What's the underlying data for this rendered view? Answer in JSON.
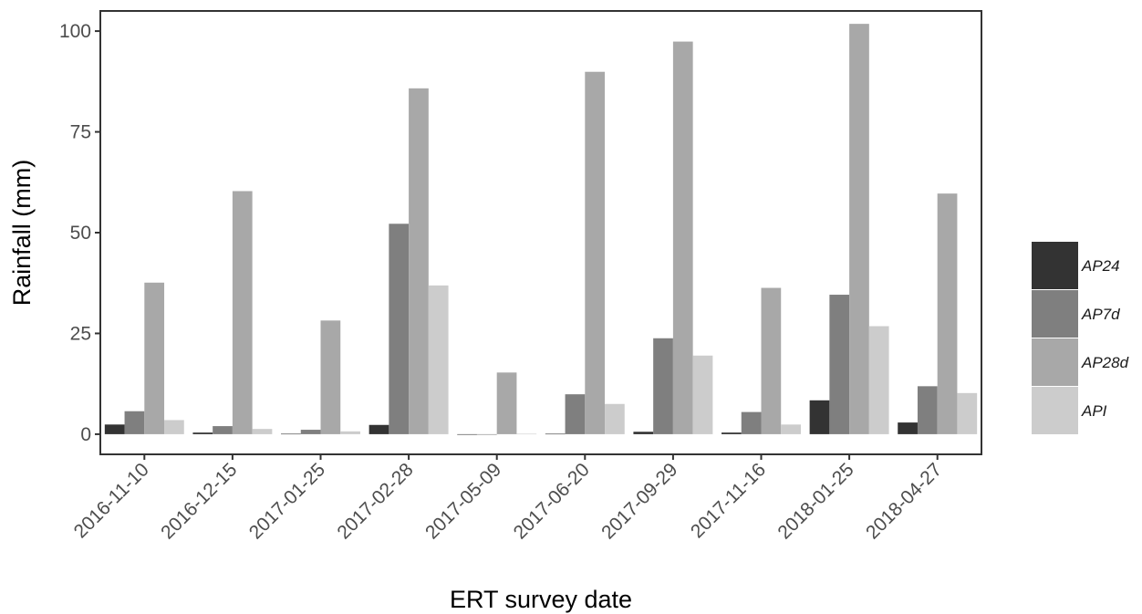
{
  "chart_data": {
    "type": "bar",
    "xlabel": "ERT survey date",
    "ylabel": "Rainfall (mm)",
    "ylim": [
      -5,
      105
    ],
    "yticks": [
      0,
      25,
      50,
      75,
      100
    ],
    "grid": false,
    "legend_position": "right",
    "categories": [
      "2016-11-10",
      "2016-12-15",
      "2017-01-25",
      "2017-02-28",
      "2017-05-09",
      "2017-06-20",
      "2017-09-29",
      "2017-11-16",
      "2018-01-25",
      "2018-04-27"
    ],
    "series": [
      {
        "name": "AP24",
        "color": "#333333",
        "values": [
          2.4,
          0.4,
          0.1,
          2.3,
          0.0,
          0.1,
          0.6,
          0.4,
          8.4,
          2.9
        ]
      },
      {
        "name": "AP7d",
        "color": "#7f7f7f",
        "values": [
          5.7,
          2.0,
          1.1,
          52.2,
          0.0,
          9.9,
          23.8,
          5.5,
          34.6,
          11.9
        ]
      },
      {
        "name": "AP28d",
        "color": "#a8a8a8",
        "values": [
          37.6,
          60.3,
          28.2,
          85.8,
          15.3,
          89.9,
          97.4,
          36.3,
          101.8,
          59.7
        ]
      },
      {
        "name": "API",
        "color": "#cccccc",
        "values": [
          3.5,
          1.3,
          0.7,
          36.9,
          0.1,
          7.5,
          19.5,
          2.4,
          26.8,
          10.2
        ]
      }
    ]
  }
}
